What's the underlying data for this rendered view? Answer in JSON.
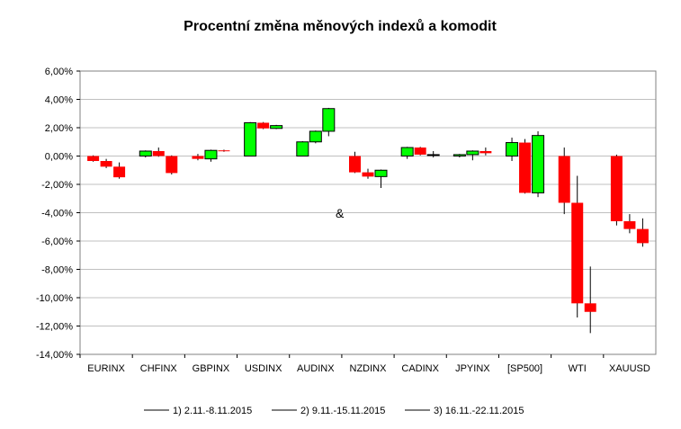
{
  "chart_data": {
    "type": "candlestick",
    "title": "Procentní změna měnových indexů a komodit",
    "annotation": "&",
    "ylim": [
      -14,
      6
    ],
    "ytick_step": 2,
    "ytick_labels": [
      "6,00%",
      "4,00%",
      "2,00%",
      "0,00%",
      "-2,00%",
      "-4,00%",
      "-6,00%",
      "-8,00%",
      "-10,00%",
      "-12,00%",
      "-14,00%"
    ],
    "grid": true,
    "legend_position": "bottom",
    "colors": {
      "up": "#00ff00",
      "down": "#ff0000",
      "outline": "#000000",
      "grid": "#c0c0c0",
      "plot_border": "#808080"
    },
    "categories": [
      "EURINX",
      "CHFINX",
      "GBPINX",
      "USDINX",
      "AUDINX",
      "NZDINX",
      "CADINX",
      "JPYINX",
      "[SP500]",
      "WTI",
      "XAUUSD"
    ],
    "series": [
      {
        "name": "1) 2.11.-8.11.2015",
        "candles": [
          {
            "open": 0.0,
            "close": -0.35,
            "high": 0.05,
            "low": -0.4
          },
          {
            "open": 0.0,
            "close": 0.35,
            "high": 0.4,
            "low": -0.1
          },
          {
            "open": 0.0,
            "close": -0.2,
            "high": 0.15,
            "low": -0.3
          },
          {
            "open": 0.0,
            "close": 2.35,
            "high": 2.4,
            "low": 0.0
          },
          {
            "open": 0.0,
            "close": 1.0,
            "high": 1.05,
            "low": 0.0
          },
          {
            "open": 0.0,
            "close": -1.15,
            "high": 0.3,
            "low": -1.2
          },
          {
            "open": 0.0,
            "close": 0.6,
            "high": 0.65,
            "low": -0.2
          },
          {
            "open": 0.0,
            "close": 0.1,
            "high": 0.15,
            "low": -0.1
          },
          {
            "open": 0.0,
            "close": 0.95,
            "high": 1.3,
            "low": -0.35
          },
          {
            "open": 0.0,
            "close": -3.3,
            "high": 0.6,
            "low": -4.1
          },
          {
            "open": 0.0,
            "close": -4.6,
            "high": 0.1,
            "low": -4.9
          }
        ]
      },
      {
        "name": "2) 9.11.-15.11.2015",
        "candles": [
          {
            "open": -0.35,
            "close": -0.75,
            "high": -0.2,
            "low": -0.85
          },
          {
            "open": 0.35,
            "close": 0.0,
            "high": 0.6,
            "low": -0.05
          },
          {
            "open": -0.2,
            "close": 0.4,
            "high": 0.45,
            "low": -0.4
          },
          {
            "open": 2.35,
            "close": 1.95,
            "high": 2.4,
            "low": 1.9
          },
          {
            "open": 1.0,
            "close": 1.75,
            "high": 1.8,
            "low": 0.9
          },
          {
            "open": -1.15,
            "close": -1.45,
            "high": -0.9,
            "low": -1.6
          },
          {
            "open": 0.6,
            "close": 0.1,
            "high": 0.65,
            "low": 0.05
          },
          {
            "open": 0.1,
            "close": 0.35,
            "high": 0.4,
            "low": -0.3
          },
          {
            "open": 0.95,
            "close": -2.6,
            "high": 1.2,
            "low": -2.65
          },
          {
            "open": -3.3,
            "close": -10.4,
            "high": -1.4,
            "low": -11.4
          },
          {
            "open": -4.6,
            "close": -5.15,
            "high": -4.1,
            "low": -5.45
          }
        ]
      },
      {
        "name": "3) 16.11.-22.11.2015",
        "candles": [
          {
            "open": -0.75,
            "close": -1.5,
            "high": -0.45,
            "low": -1.6
          },
          {
            "open": 0.0,
            "close": -1.2,
            "high": 0.05,
            "low": -1.3
          },
          {
            "open": 0.4,
            "close": 0.35,
            "high": 0.45,
            "low": 0.3
          },
          {
            "open": 1.95,
            "close": 2.15,
            "high": 2.2,
            "low": 1.9
          },
          {
            "open": 1.75,
            "close": 3.35,
            "high": 3.4,
            "low": 1.4
          },
          {
            "open": -1.45,
            "close": -1.0,
            "high": -0.95,
            "low": -2.25
          },
          {
            "open": 0.1,
            "close": 0.1,
            "high": 0.35,
            "low": -0.1
          },
          {
            "open": 0.35,
            "close": 0.2,
            "high": 0.6,
            "low": 0.05
          },
          {
            "open": -2.6,
            "close": 1.45,
            "high": 1.75,
            "low": -2.9
          },
          {
            "open": -10.4,
            "close": -11.0,
            "high": -7.8,
            "low": -12.5
          },
          {
            "open": -5.15,
            "close": -6.15,
            "high": -4.4,
            "low": -6.4
          }
        ]
      }
    ]
  }
}
